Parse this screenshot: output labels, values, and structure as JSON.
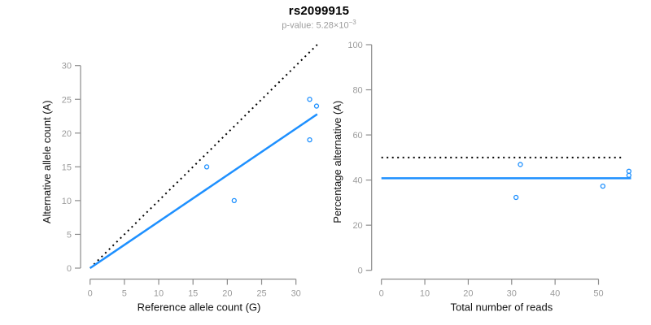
{
  "header": {
    "title": "rs2099915",
    "pvalue_text": "p-value: 5.28×10",
    "pvalue_exponent": "−3"
  },
  "colors": {
    "fit_line": "#1E90FF",
    "reference_line": "#000000",
    "axis": "#8c8c8c",
    "tick_label": "#9c9c9c",
    "axis_title": "#111111",
    "subtitle": "#9c9c9c"
  },
  "chart_data": [
    {
      "type": "scatter",
      "name": "allele-counts",
      "xlabel": "Reference allele count (G)",
      "ylabel": "Alternative allele count (A)",
      "xlim": [
        0,
        33.1
      ],
      "ylim": [
        0,
        33.1
      ],
      "xticks": [
        0,
        5,
        10,
        15,
        20,
        25,
        30
      ],
      "yticks": [
        0,
        5,
        10,
        15,
        20,
        25,
        30
      ],
      "grid": false,
      "legend": null,
      "points": [
        {
          "x": 17,
          "y": 15
        },
        {
          "x": 21,
          "y": 10
        },
        {
          "x": 32,
          "y": 25
        },
        {
          "x": 33,
          "y": 24
        },
        {
          "x": 32,
          "y": 19
        }
      ],
      "lines": [
        {
          "name": "identity-line",
          "style": "dotted",
          "color_key": "reference_line",
          "x1": 0,
          "y1": 0,
          "x2": 33.1,
          "y2": 33.1
        },
        {
          "name": "fit-line",
          "style": "solid",
          "color_key": "fit_line",
          "slope": 0.69,
          "x1": 0,
          "y1": 0,
          "x2": 33.1,
          "y2": 22.8
        }
      ]
    },
    {
      "type": "scatter",
      "name": "percentage-vs-reads",
      "xlabel": "Total number of reads",
      "ylabel": "Percentage alternative (A)",
      "xlim": [
        0,
        57.5
      ],
      "ylim": [
        0,
        100
      ],
      "xticks": [
        0,
        10,
        20,
        30,
        40,
        50
      ],
      "yticks": [
        0,
        20,
        40,
        60,
        80,
        100
      ],
      "grid": false,
      "legend": null,
      "points": [
        {
          "x": 32,
          "y": 46.9
        },
        {
          "x": 31,
          "y": 32.3
        },
        {
          "x": 51,
          "y": 37.3
        },
        {
          "x": 57,
          "y": 43.9
        },
        {
          "x": 57,
          "y": 42.1
        }
      ],
      "lines": [
        {
          "name": "expected-50pct-line",
          "style": "dotted",
          "color_key": "reference_line",
          "x1": 0,
          "y1": 50,
          "x2": 56,
          "y2": 50
        },
        {
          "name": "mean-percentage-line",
          "style": "solid",
          "color_key": "fit_line",
          "x1": 0,
          "y1": 40.8,
          "x2": 57.5,
          "y2": 40.8
        }
      ]
    }
  ]
}
